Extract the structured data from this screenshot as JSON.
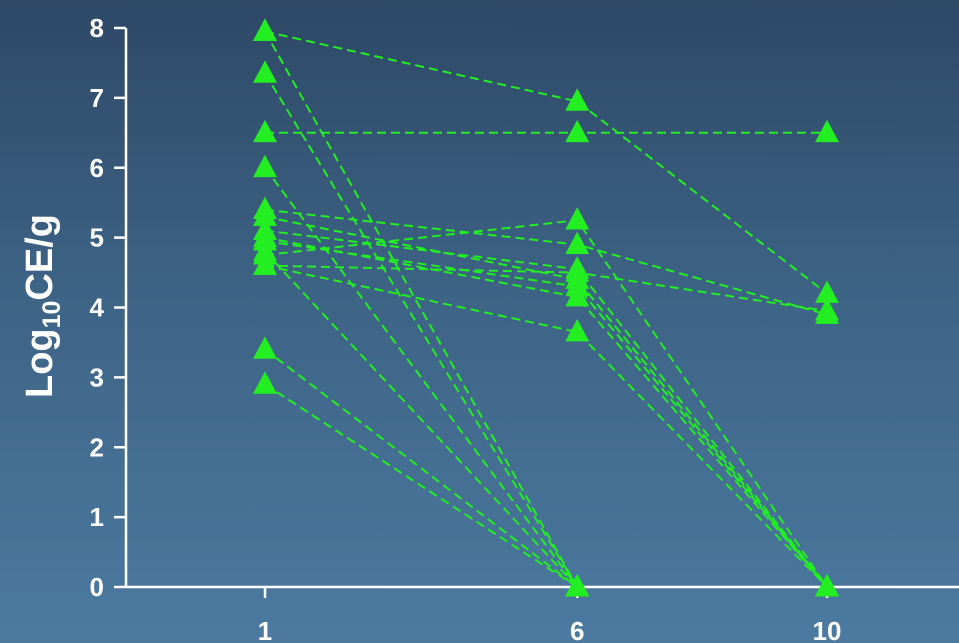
{
  "chart_data": {
    "type": "line",
    "title": "",
    "ylabel": "Log10CE/g",
    "ylabel_parts": {
      "pre": "Log",
      "sub": "10",
      "post": "CE/g"
    },
    "xlabel": "",
    "x_ticks": [
      1,
      6,
      10
    ],
    "y_ticks": [
      0,
      1,
      2,
      3,
      4,
      5,
      6,
      7,
      8
    ],
    "x_tick_labels": [
      "1",
      "6",
      "10"
    ],
    "y_tick_labels": [
      "0",
      "1",
      "2",
      "3",
      "4",
      "5",
      "6",
      "7",
      "8"
    ],
    "xlim": [
      -1.1,
      13.2
    ],
    "ylim": [
      0,
      8
    ],
    "grid": false,
    "legend": "none",
    "color": "#22ee22",
    "marker": "triangle",
    "line_style": "dashed",
    "series": [
      {
        "x": [
          1,
          6
        ],
        "y": [
          2.9,
          0
        ]
      },
      {
        "x": [
          1,
          6
        ],
        "y": [
          3.4,
          0
        ]
      },
      {
        "x": [
          1,
          6
        ],
        "y": [
          6.0,
          0
        ]
      },
      {
        "x": [
          1,
          6
        ],
        "y": [
          7.35,
          0
        ]
      },
      {
        "x": [
          1,
          6
        ],
        "y": [
          7.95,
          0
        ]
      },
      {
        "x": [
          1,
          6
        ],
        "y": [
          4.8,
          0
        ]
      },
      {
        "x": [
          1,
          6,
          10
        ],
        "y": [
          7.95,
          6.95,
          4.2
        ]
      },
      {
        "x": [
          1,
          6,
          10
        ],
        "y": [
          6.5,
          6.5,
          6.5
        ]
      },
      {
        "x": [
          1,
          6,
          10
        ],
        "y": [
          5.4,
          4.9,
          3.9
        ]
      },
      {
        "x": [
          1,
          6,
          10
        ],
        "y": [
          4.6,
          4.5,
          3.95
        ]
      },
      {
        "x": [
          1,
          6,
          10
        ],
        "y": [
          4.75,
          5.25,
          0
        ]
      },
      {
        "x": [
          1,
          6,
          10
        ],
        "y": [
          5.1,
          4.55,
          0
        ]
      },
      {
        "x": [
          1,
          6,
          10
        ],
        "y": [
          5.3,
          4.4,
          0
        ]
      },
      {
        "x": [
          1,
          6,
          10
        ],
        "y": [
          4.95,
          4.3,
          0
        ]
      },
      {
        "x": [
          1,
          6,
          10
        ],
        "y": [
          5.0,
          4.15,
          0
        ]
      },
      {
        "x": [
          1,
          6,
          10
        ],
        "y": [
          4.6,
          3.65,
          0
        ]
      }
    ]
  }
}
